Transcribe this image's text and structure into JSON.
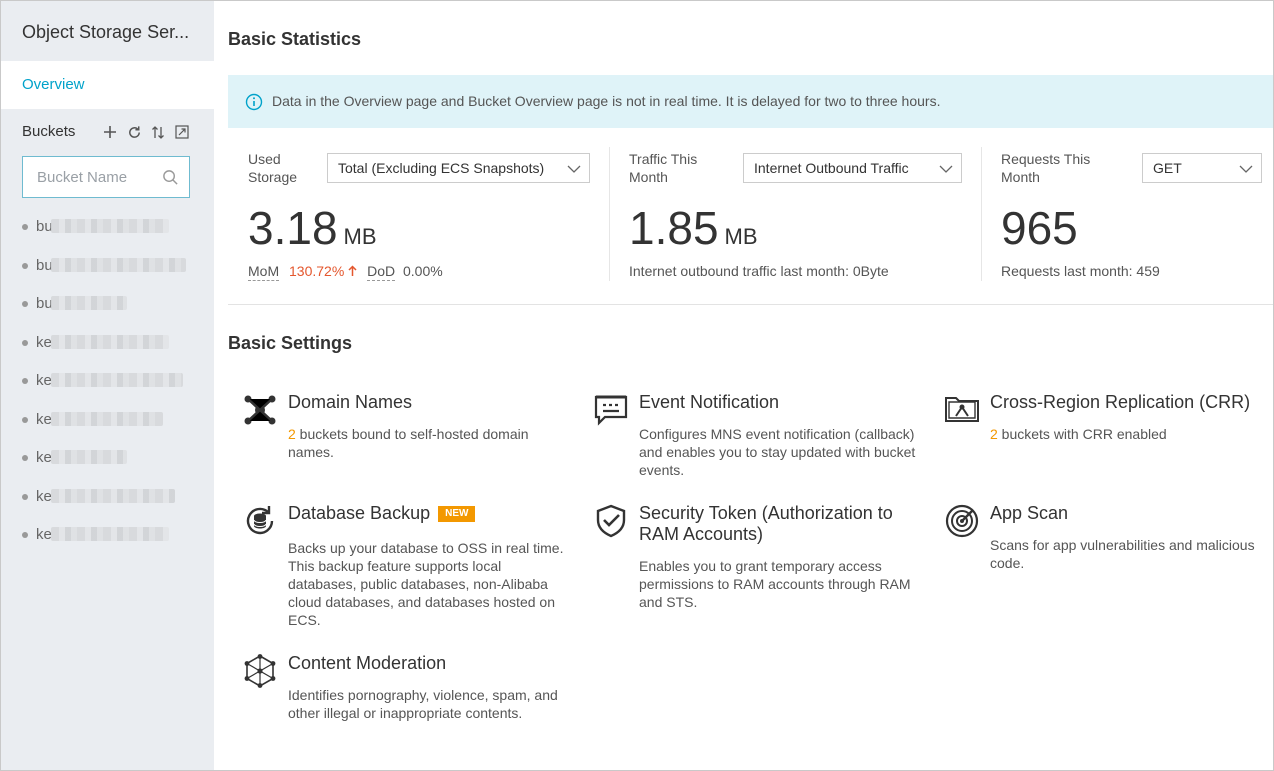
{
  "sidebar": {
    "title": "Object Storage Ser...",
    "nav_overview": "Overview",
    "buckets_label": "Buckets",
    "search_placeholder": "Bucket Name",
    "buckets": [
      {
        "prefix": "bu"
      },
      {
        "prefix": "bu"
      },
      {
        "prefix": "bu"
      },
      {
        "prefix": "ke"
      },
      {
        "prefix": "ke"
      },
      {
        "prefix": "ke"
      },
      {
        "prefix": "ke"
      },
      {
        "prefix": "ke"
      },
      {
        "prefix": "ke"
      }
    ]
  },
  "main": {
    "basic_statistics_title": "Basic Statistics",
    "notice": "Data in the Overview page and Bucket Overview page is not in real time. It is delayed for two to three hours.",
    "stats": {
      "storage": {
        "label_line1": "Used",
        "label_line2": "Storage",
        "dropdown": "Total (Excluding ECS Snapshots)",
        "value": "3.18",
        "unit": "MB",
        "mom_label": "MoM",
        "mom_value": "130.72%",
        "dod_label": "DoD",
        "dod_value": "0.00%"
      },
      "traffic": {
        "label_line1": "Traffic This",
        "label_line2": "Month",
        "dropdown": "Internet Outbound Traffic",
        "value": "1.85",
        "unit": "MB",
        "sub": "Internet outbound traffic last month: 0Byte"
      },
      "requests": {
        "label_line1": "Requests This",
        "label_line2": "Month",
        "dropdown": "GET",
        "value": "965",
        "sub_label": "Requests last month:",
        "sub_value": "459"
      }
    },
    "basic_settings_title": "Basic Settings",
    "features": {
      "domain": {
        "title": "Domain Names",
        "count": "2",
        "desc": " buckets bound to self-hosted domain names."
      },
      "event": {
        "title": "Event Notification",
        "desc": "Configures MNS event notification (callback) and enables you to stay updated with bucket events."
      },
      "crr": {
        "title": "Cross-Region Replication (CRR)",
        "count": "2",
        "desc": " buckets with CRR enabled"
      },
      "dbbackup": {
        "title": "Database Backup",
        "badge": "NEW",
        "desc": "Backs up your database to OSS in real time. This backup feature supports local databases, public databases, non-Alibaba cloud databases, and databases hosted on ECS."
      },
      "sts": {
        "title_line1": "Security Token (Authorization to",
        "title_line2": "RAM Accounts)",
        "desc": "Enables you to grant temporary access permissions to RAM accounts through RAM and STS."
      },
      "appscan": {
        "title": "App Scan",
        "desc": "Scans for app vulnerabilities and malicious code."
      },
      "moderation": {
        "title": "Content Moderation",
        "desc": "Identifies pornography, violence, spam, and other illegal or inappropriate contents."
      }
    }
  },
  "colors": {
    "accent": "#00a2ca",
    "warning_red": "#e4572e",
    "orange": "#f39800",
    "sidebar_bg": "#eaedf1",
    "notice_bg": "#dff3f8"
  }
}
